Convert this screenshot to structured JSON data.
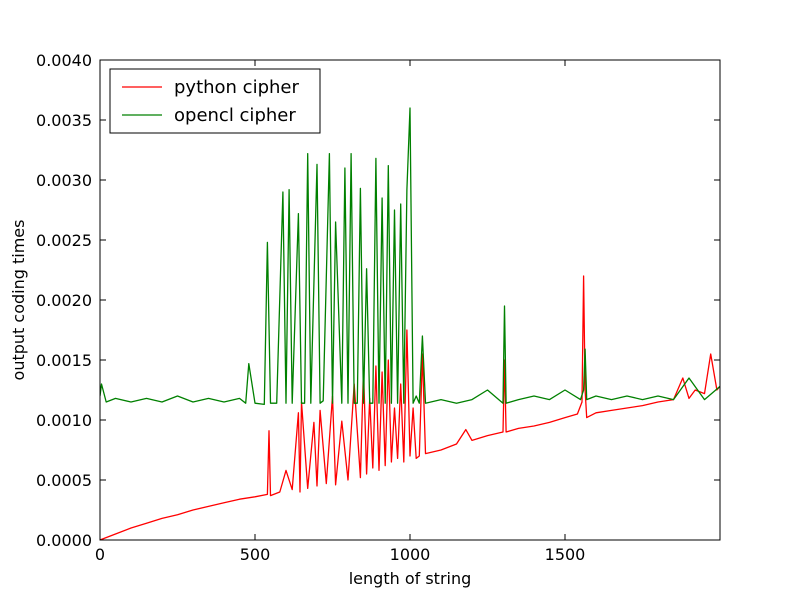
{
  "chart_data": {
    "type": "line",
    "xlabel": "length of string",
    "ylabel": "output coding times",
    "xlim": [
      0,
      2000
    ],
    "ylim": [
      0,
      0.004
    ],
    "x_ticks": [
      0,
      500,
      1000,
      1500
    ],
    "x_tick_labels": [
      "0",
      "500",
      "1000",
      "1500"
    ],
    "y_ticks": [
      0,
      0.0005,
      0.001,
      0.0015,
      0.002,
      0.0025,
      0.003,
      0.0035,
      0.004
    ],
    "y_tick_labels": [
      "0.0000",
      "0.0005",
      "0.0010",
      "0.0015",
      "0.0020",
      "0.0025",
      "0.0030",
      "0.0035",
      "0.0040"
    ],
    "grid": false,
    "legend_position": "top-left",
    "series": [
      {
        "name": "python cipher",
        "color": "#ff0000",
        "x": [
          0,
          50,
          100,
          150,
          200,
          250,
          300,
          350,
          400,
          450,
          500,
          540,
          545,
          550,
          580,
          600,
          620,
          640,
          645,
          650,
          670,
          690,
          700,
          710,
          730,
          750,
          760,
          780,
          800,
          820,
          840,
          850,
          860,
          870,
          880,
          890,
          900,
          910,
          920,
          930,
          940,
          950,
          960,
          970,
          980,
          990,
          1000,
          1010,
          1020,
          1030,
          1040,
          1050,
          1100,
          1150,
          1180,
          1200,
          1250,
          1300,
          1305,
          1310,
          1350,
          1400,
          1450,
          1500,
          1540,
          1555,
          1560,
          1565,
          1570,
          1600,
          1650,
          1700,
          1750,
          1800,
          1850,
          1880,
          1900,
          1920,
          1950,
          1970,
          1990,
          2000
        ],
        "y": [
          0.0,
          5e-05,
          0.0001,
          0.00014,
          0.00018,
          0.00021,
          0.00025,
          0.00028,
          0.00031,
          0.00034,
          0.00036,
          0.00038,
          0.00091,
          0.00037,
          0.0004,
          0.00058,
          0.00042,
          0.00106,
          0.0004,
          0.00115,
          0.00043,
          0.00098,
          0.00045,
          0.00108,
          0.00047,
          0.0012,
          0.00046,
          0.00099,
          0.0005,
          0.0013,
          0.00052,
          0.00143,
          0.00055,
          0.00118,
          0.0006,
          0.00145,
          0.00058,
          0.0014,
          0.00062,
          0.0015,
          0.00065,
          0.0011,
          0.00068,
          0.0013,
          0.00065,
          0.00175,
          0.0007,
          0.0011,
          0.00068,
          0.0007,
          0.00155,
          0.00072,
          0.00075,
          0.0008,
          0.00092,
          0.00083,
          0.00087,
          0.0009,
          0.0015,
          0.0009,
          0.00093,
          0.00095,
          0.00098,
          0.00102,
          0.00105,
          0.00115,
          0.0022,
          0.00125,
          0.00102,
          0.00106,
          0.00108,
          0.0011,
          0.00112,
          0.00115,
          0.00117,
          0.00135,
          0.00118,
          0.00125,
          0.00122,
          0.00155,
          0.00125,
          0.00128
        ]
      },
      {
        "name": "opencl cipher",
        "color": "#008000",
        "x": [
          0,
          5,
          20,
          50,
          100,
          150,
          200,
          250,
          300,
          350,
          400,
          450,
          470,
          480,
          500,
          530,
          540,
          550,
          570,
          590,
          600,
          610,
          620,
          640,
          650,
          660,
          670,
          680,
          700,
          710,
          720,
          740,
          750,
          760,
          780,
          790,
          800,
          810,
          820,
          830,
          840,
          850,
          860,
          870,
          880,
          890,
          900,
          910,
          920,
          930,
          940,
          950,
          960,
          970,
          980,
          990,
          1000,
          1010,
          1020,
          1030,
          1040,
          1050,
          1100,
          1150,
          1200,
          1250,
          1300,
          1305,
          1310,
          1350,
          1400,
          1450,
          1500,
          1550,
          1560,
          1565,
          1570,
          1600,
          1650,
          1700,
          1750,
          1800,
          1850,
          1900,
          1950,
          2000
        ],
        "y": [
          0.0012,
          0.0013,
          0.00115,
          0.00118,
          0.00115,
          0.00118,
          0.00115,
          0.0012,
          0.00115,
          0.00118,
          0.00115,
          0.00118,
          0.00114,
          0.00147,
          0.00114,
          0.00113,
          0.00248,
          0.00114,
          0.00114,
          0.0029,
          0.00114,
          0.00292,
          0.00114,
          0.00272,
          0.00114,
          0.00114,
          0.00322,
          0.00114,
          0.00313,
          0.00114,
          0.00116,
          0.00322,
          0.00114,
          0.00265,
          0.00114,
          0.0031,
          0.00114,
          0.00322,
          0.00114,
          0.00114,
          0.00293,
          0.00114,
          0.00226,
          0.00114,
          0.00114,
          0.00318,
          0.00114,
          0.00285,
          0.00114,
          0.00312,
          0.00114,
          0.00275,
          0.00114,
          0.0028,
          0.00114,
          0.00292,
          0.0036,
          0.00114,
          0.0012,
          0.00114,
          0.0017,
          0.00114,
          0.00117,
          0.00114,
          0.00117,
          0.00125,
          0.00114,
          0.00195,
          0.00114,
          0.00117,
          0.0012,
          0.00117,
          0.00125,
          0.00117,
          0.00125,
          0.00159,
          0.00117,
          0.0012,
          0.00117,
          0.0012,
          0.00117,
          0.0012,
          0.00117,
          0.00135,
          0.00117,
          0.00128
        ]
      }
    ]
  }
}
